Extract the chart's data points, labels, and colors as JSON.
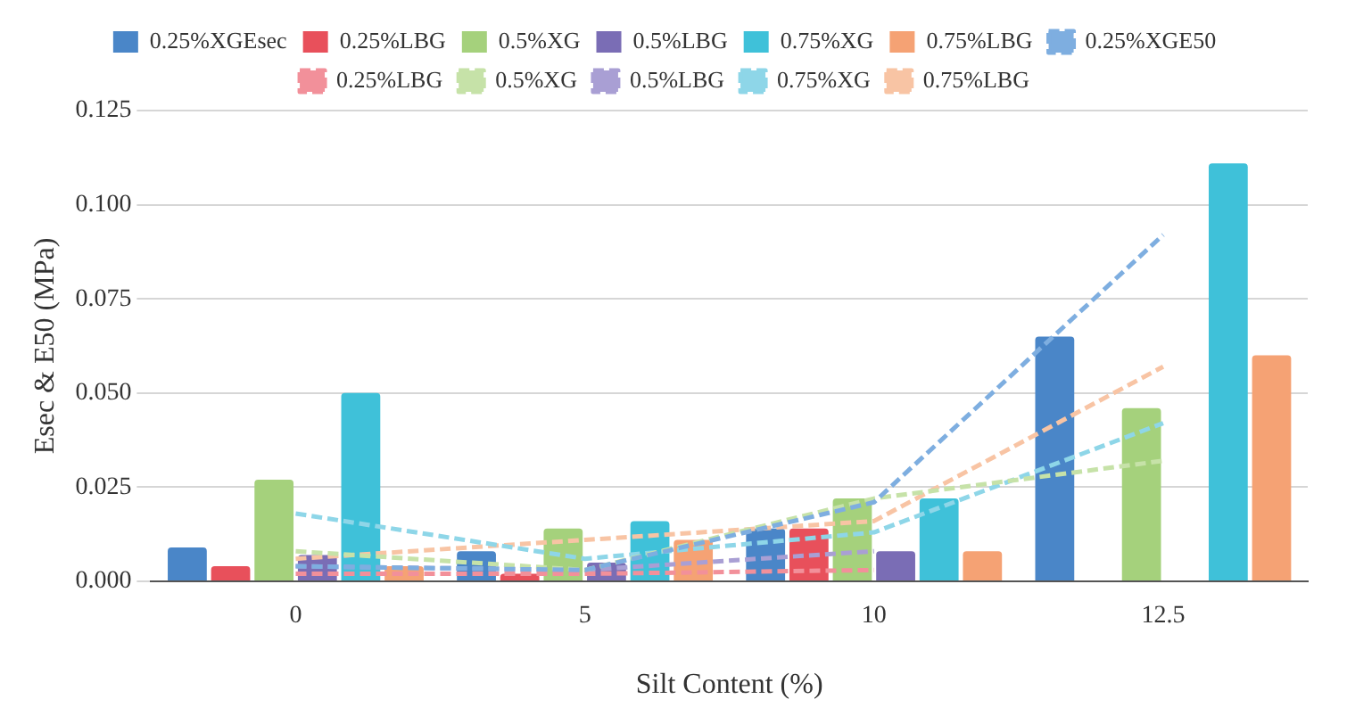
{
  "chart_data": {
    "type": "bar",
    "xlabel": "Silt Content (%)",
    "ylabel": "Esec & E50 (MPa)",
    "categories": [
      "0",
      "5",
      "10",
      "12.5"
    ],
    "ylim": [
      0,
      0.125
    ],
    "yticks": [
      {
        "value": 0,
        "label": "0.000"
      },
      {
        "value": 0.025,
        "label": "0.025"
      },
      {
        "value": 0.05,
        "label": "0.050"
      },
      {
        "value": 0.075,
        "label": "0.075"
      },
      {
        "value": 0.1,
        "label": "0.100"
      },
      {
        "value": 0.125,
        "label": "0.125"
      }
    ],
    "grid": "y",
    "legend": "top",
    "marker": "none",
    "series": [
      {
        "name": "0.25%XGEsec",
        "color": "#4a86c8",
        "values": [
          0.009,
          0.008,
          0.014,
          0.065
        ]
      },
      {
        "name": "0.25%LBG",
        "color": "#e8505b",
        "values": [
          0.004,
          0.002,
          0.014,
          null
        ]
      },
      {
        "name": "0.5%XG",
        "color": "#a5d17c",
        "values": [
          0.027,
          0.014,
          0.022,
          0.046
        ]
      },
      {
        "name": "0.5%LBG",
        "color": "#7a6db5",
        "values": [
          0.007,
          0.005,
          0.008,
          null
        ]
      },
      {
        "name": "0.75%XG",
        "color": "#3fc1d9",
        "values": [
          0.05,
          0.016,
          0.022,
          0.111
        ]
      },
      {
        "name": "0.75%LBG",
        "color": "#f5a274",
        "values": [
          0.004,
          0.011,
          0.008,
          0.06
        ]
      },
      {
        "name": "0.25%XGE50",
        "type": "line",
        "line_style": "dashed",
        "color": "#7eaee0",
        "values": [
          0.004,
          0.003,
          0.021,
          0.092
        ]
      },
      {
        "name": "0.25%LBG",
        "type": "line",
        "line_style": "dashed",
        "color": "#f2909a",
        "values": [
          0.002,
          0.002,
          0.003,
          null
        ]
      },
      {
        "name": "0.5%XG",
        "type": "line",
        "line_style": "dashed",
        "color": "#c6e2a8",
        "values": [
          0.008,
          0.003,
          0.022,
          0.032
        ]
      },
      {
        "name": "0.5%LBG",
        "type": "line",
        "line_style": "dashed",
        "color": "#a99fd4",
        "values": [
          0.004,
          0.003,
          0.008,
          null
        ]
      },
      {
        "name": "0.75%XG",
        "type": "line",
        "line_style": "dashed",
        "color": "#8ed6e8",
        "values": [
          0.018,
          0.006,
          0.013,
          0.042
        ]
      },
      {
        "name": "0.75%LBG",
        "type": "line",
        "line_style": "dashed",
        "color": "#f8c4a4",
        "values": [
          0.006,
          0.011,
          0.016,
          0.057
        ]
      }
    ]
  }
}
